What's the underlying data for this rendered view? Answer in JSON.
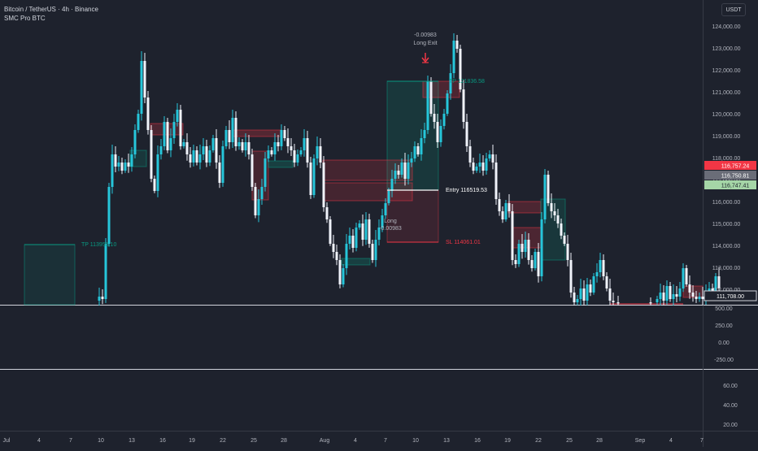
{
  "header": {
    "symbol": "Bitcoin / TetherUS · 4h · Binance",
    "indicator": "SMC Pro BTC"
  },
  "currency": "USDT",
  "price_axis": [
    "124,000.00",
    "123,000.00",
    "122,000.00",
    "121,000.00",
    "120,000.00",
    "119,000.00",
    "118,000.00",
    "117,000.00",
    "116,000.00",
    "115,000.00",
    "114,000.00",
    "113,000.00",
    "112,000.00"
  ],
  "price_tags": {
    "red": "116,757.24",
    "grey": "116,750.81",
    "green": "116,747.41",
    "current": "111,708.00"
  },
  "osc_axis": {
    "pane1": [
      "500.00",
      "250.00",
      "0.00",
      "-250.00"
    ],
    "pane2": [
      "60.00",
      "40.00",
      "20.00"
    ]
  },
  "time_axis": [
    "Jul",
    "4",
    "7",
    "10",
    "13",
    "16",
    "19",
    "22",
    "25",
    "28",
    "Aug",
    "4",
    "7",
    "10",
    "13",
    "16",
    "19",
    "22",
    "25",
    "28",
    "Sep",
    "4",
    "7"
  ],
  "annotations": {
    "long_exit_value": "-0.00983",
    "long_exit_label": "Long Exit",
    "entry_label": "Entry 116519.53",
    "sl_label": "SL 114061.01",
    "tp_label": "TP 113955.10",
    "tp_label2": "TP 121836.58",
    "long_label": "Long",
    "long_value": "-0.00983"
  },
  "colors": {
    "background": "#1e222d",
    "up": "#26c6da",
    "down": "#f0f3fa",
    "bear_zone": "#f23645",
    "bull_zone": "#089981"
  }
}
